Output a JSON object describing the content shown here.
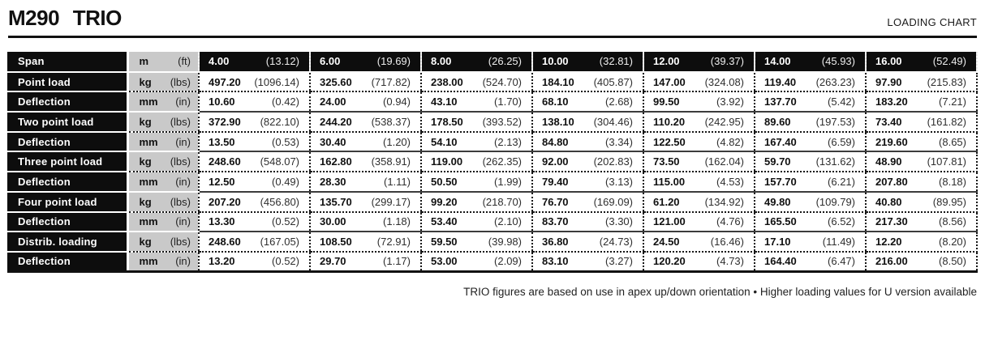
{
  "header": {
    "title": "M290 TRIO",
    "tag": "LOADING CHART"
  },
  "chart_data": {
    "type": "table",
    "title": "M290 TRIO — LOADING CHART",
    "rows": [
      {
        "label": "Span",
        "unit": "m",
        "unit_alt": "(ft)",
        "values": [
          [
            "4.00",
            "(13.12)"
          ],
          [
            "6.00",
            "(19.69)"
          ],
          [
            "8.00",
            "(26.25)"
          ],
          [
            "10.00",
            "(32.81)"
          ],
          [
            "12.00",
            "(39.37)"
          ],
          [
            "14.00",
            "(45.93)"
          ],
          [
            "16.00",
            "(52.49)"
          ]
        ]
      },
      {
        "label": "Point load",
        "unit": "kg",
        "unit_alt": "(lbs)",
        "values": [
          [
            "497.20",
            "(1096.14)"
          ],
          [
            "325.60",
            "(717.82)"
          ],
          [
            "238.00",
            "(524.70)"
          ],
          [
            "184.10",
            "(405.87)"
          ],
          [
            "147.00",
            "(324.08)"
          ],
          [
            "119.40",
            "(263.23)"
          ],
          [
            "97.90",
            "(215.83)"
          ]
        ]
      },
      {
        "label": "Deflection",
        "unit": "mm",
        "unit_alt": "(in)",
        "values": [
          [
            "10.60",
            "(0.42)"
          ],
          [
            "24.00",
            "(0.94)"
          ],
          [
            "43.10",
            "(1.70)"
          ],
          [
            "68.10",
            "(2.68)"
          ],
          [
            "99.50",
            "(3.92)"
          ],
          [
            "137.70",
            "(5.42)"
          ],
          [
            "183.20",
            "(7.21)"
          ]
        ]
      },
      {
        "label": "Two point load",
        "unit": "kg",
        "unit_alt": "(lbs)",
        "values": [
          [
            "372.90",
            "(822.10)"
          ],
          [
            "244.20",
            "(538.37)"
          ],
          [
            "178.50",
            "(393.52)"
          ],
          [
            "138.10",
            "(304.46)"
          ],
          [
            "110.20",
            "(242.95)"
          ],
          [
            "89.60",
            "(197.53)"
          ],
          [
            "73.40",
            "(161.82)"
          ]
        ]
      },
      {
        "label": "Deflection",
        "unit": "mm",
        "unit_alt": "(in)",
        "values": [
          [
            "13.50",
            "(0.53)"
          ],
          [
            "30.40",
            "(1.20)"
          ],
          [
            "54.10",
            "(2.13)"
          ],
          [
            "84.80",
            "(3.34)"
          ],
          [
            "122.50",
            "(4.82)"
          ],
          [
            "167.40",
            "(6.59)"
          ],
          [
            "219.60",
            "(8.65)"
          ]
        ]
      },
      {
        "label": "Three point load",
        "unit": "kg",
        "unit_alt": "(lbs)",
        "values": [
          [
            "248.60",
            "(548.07)"
          ],
          [
            "162.80",
            "(358.91)"
          ],
          [
            "119.00",
            "(262.35)"
          ],
          [
            "92.00",
            "(202.83)"
          ],
          [
            "73.50",
            "(162.04)"
          ],
          [
            "59.70",
            "(131.62)"
          ],
          [
            "48.90",
            "(107.81)"
          ]
        ]
      },
      {
        "label": "Deflection",
        "unit": "mm",
        "unit_alt": "(in)",
        "values": [
          [
            "12.50",
            "(0.49)"
          ],
          [
            "28.30",
            "(1.11)"
          ],
          [
            "50.50",
            "(1.99)"
          ],
          [
            "79.40",
            "(3.13)"
          ],
          [
            "115.00",
            "(4.53)"
          ],
          [
            "157.70",
            "(6.21)"
          ],
          [
            "207.80",
            "(8.18)"
          ]
        ]
      },
      {
        "label": "Four point load",
        "unit": "kg",
        "unit_alt": "(lbs)",
        "values": [
          [
            "207.20",
            "(456.80)"
          ],
          [
            "135.70",
            "(299.17)"
          ],
          [
            "99.20",
            "(218.70)"
          ],
          [
            "76.70",
            "(169.09)"
          ],
          [
            "61.20",
            "(134.92)"
          ],
          [
            "49.80",
            "(109.79)"
          ],
          [
            "40.80",
            "(89.95)"
          ]
        ]
      },
      {
        "label": "Deflection",
        "unit": "mm",
        "unit_alt": "(in)",
        "values": [
          [
            "13.30",
            "(0.52)"
          ],
          [
            "30.00",
            "(1.18)"
          ],
          [
            "53.40",
            "(2.10)"
          ],
          [
            "83.70",
            "(3.30)"
          ],
          [
            "121.00",
            "(4.76)"
          ],
          [
            "165.50",
            "(6.52)"
          ],
          [
            "217.30",
            "(8.56)"
          ]
        ]
      },
      {
        "label": "Distrib. loading",
        "unit": "kg",
        "unit_alt": "(lbs)",
        "values": [
          [
            "248.60",
            "(167.05)"
          ],
          [
            "108.50",
            "(72.91)"
          ],
          [
            "59.50",
            "(39.98)"
          ],
          [
            "36.80",
            "(24.73)"
          ],
          [
            "24.50",
            "(16.46)"
          ],
          [
            "17.10",
            "(11.49)"
          ],
          [
            "12.20",
            "(8.20)"
          ]
        ]
      },
      {
        "label": "Deflection",
        "unit": "mm",
        "unit_alt": "(in)",
        "values": [
          [
            "13.20",
            "(0.52)"
          ],
          [
            "29.70",
            "(1.17)"
          ],
          [
            "53.00",
            "(2.09)"
          ],
          [
            "83.10",
            "(3.27)"
          ],
          [
            "120.20",
            "(4.73)"
          ],
          [
            "164.40",
            "(6.47)"
          ],
          [
            "216.00",
            "(8.50)"
          ]
        ]
      }
    ]
  },
  "footer": {
    "note": "TRIO figures are based on use in apex up/down orientation • Higher loading values for U version available"
  },
  "colors": {
    "row_header_bg": "#0d0d0d",
    "unit_column_bg": "#c9c9c9",
    "text": "#111111"
  }
}
